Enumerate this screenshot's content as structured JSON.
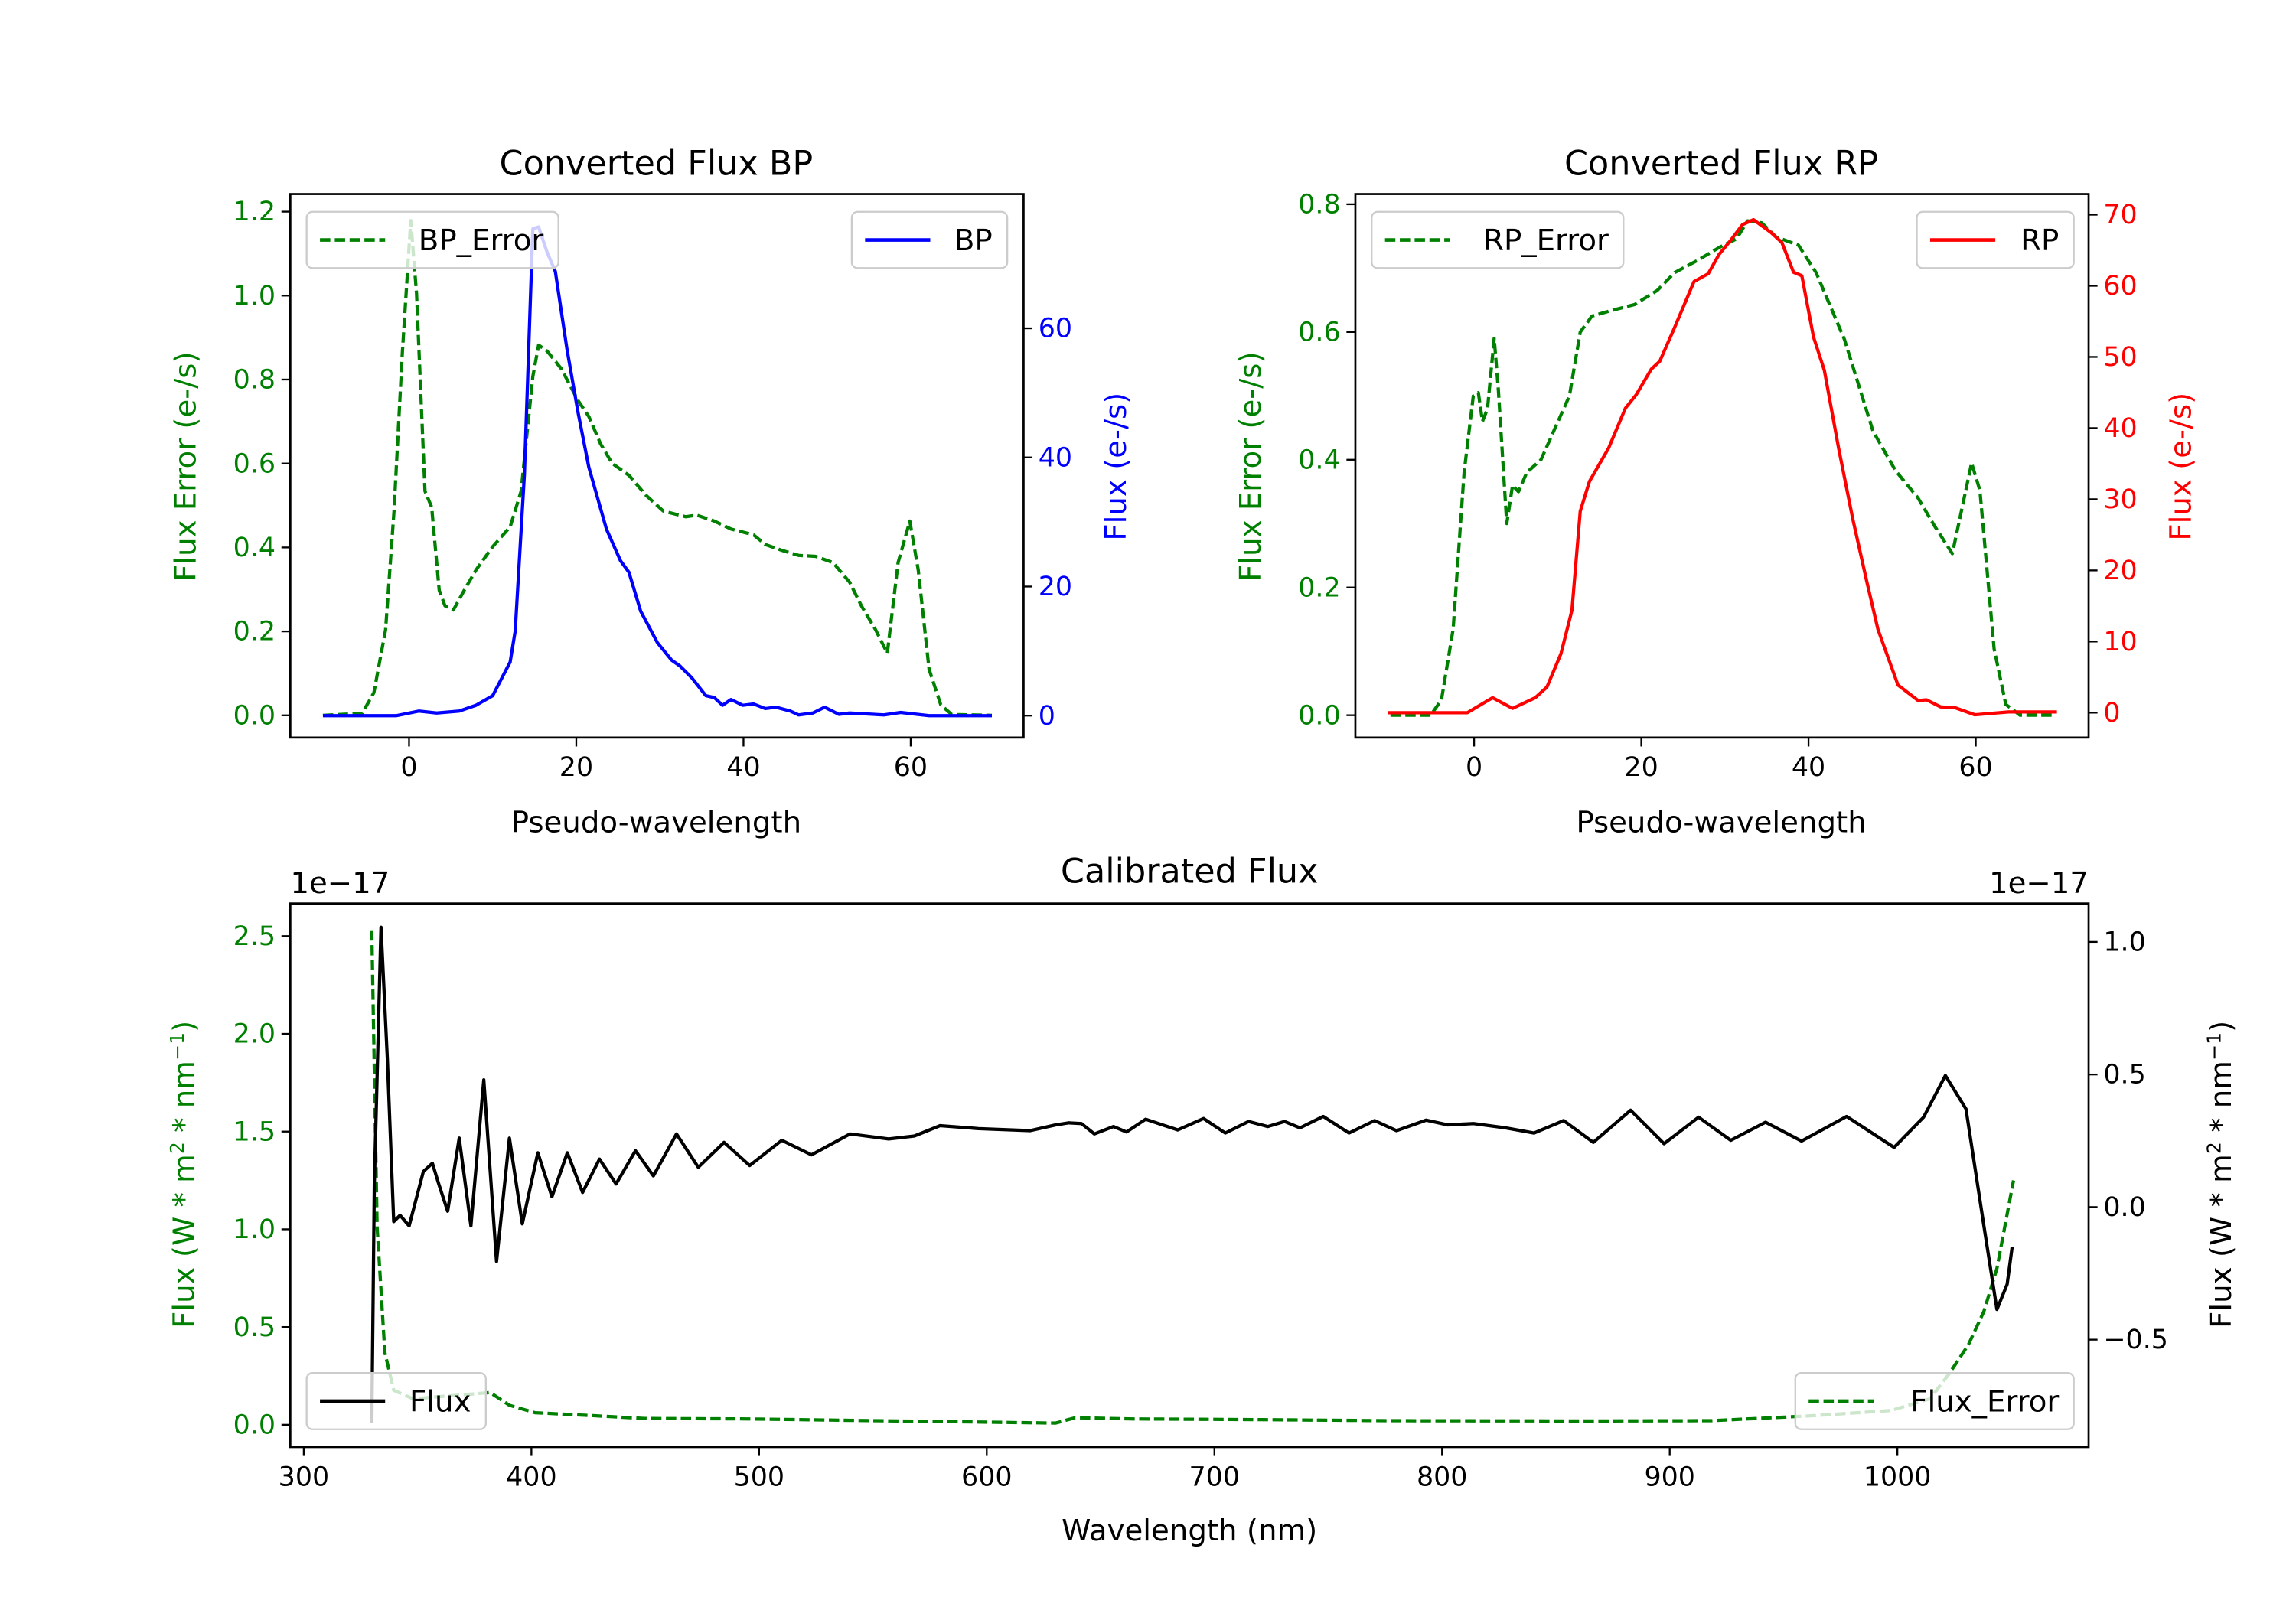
{
  "chart_data": [
    {
      "type": "line",
      "title": "Converted Flux BP",
      "xlabel": "Pseudo-wavelength",
      "ylabel_left": "Flux Error (e-/s)",
      "ylabel_right": "Flux (e-/s)",
      "xlim": [
        -14.2,
        73.5
      ],
      "ylim_left": [
        -0.053,
        1.242
      ],
      "ylim_right": [
        -3.4,
        80.8
      ],
      "xticks": [
        0,
        20,
        40,
        60
      ],
      "yticks_left": [
        "0.0",
        "0.2",
        "0.4",
        "0.6",
        "0.8",
        "1.0",
        "1.2"
      ],
      "yticks_right": [
        "0",
        "20",
        "40",
        "60"
      ],
      "left_color": "#008000",
      "right_color": "#0000ff",
      "legend": [
        {
          "label": "BP_Error",
          "placement": "upper-left"
        },
        {
          "label": "BP",
          "placement": "upper-right"
        }
      ],
      "series": [
        {
          "name": "BP_Error",
          "axis": "left",
          "color": "#008000",
          "style": "dashed",
          "x": [
            -10.3,
            -5.6,
            -4.2,
            -2.8,
            -1.8,
            -0.8,
            0.2,
            0.9,
            1.9,
            2.7,
            3.6,
            4.3,
            5.3,
            6.6,
            8,
            10,
            12.1,
            13.4,
            14.8,
            15.5,
            16.5,
            18.2,
            20.2,
            21.5,
            22.9,
            24.3,
            26.3,
            28.3,
            30.4,
            33.1,
            34.4,
            36.5,
            38.5,
            41.2,
            42.6,
            44.6,
            46.6,
            48.6,
            50.7,
            52.7,
            54.1,
            55.8,
            57.2,
            58.5,
            59.9,
            60.9,
            62.2,
            63.6,
            64.9,
            69.7
          ],
          "y": [
            0,
            0.005,
            0.054,
            0.204,
            0.487,
            0.863,
            1.179,
            1.005,
            0.534,
            0.496,
            0.298,
            0.261,
            0.251,
            0.298,
            0.346,
            0.402,
            0.449,
            0.534,
            0.807,
            0.882,
            0.868,
            0.826,
            0.75,
            0.712,
            0.647,
            0.6,
            0.572,
            0.525,
            0.487,
            0.473,
            0.477,
            0.463,
            0.444,
            0.43,
            0.407,
            0.393,
            0.381,
            0.379,
            0.364,
            0.317,
            0.261,
            0.204,
            0.148,
            0.364,
            0.463,
            0.346,
            0.11,
            0.025,
            0.002,
            0
          ]
        },
        {
          "name": "BP",
          "axis": "right",
          "color": "#0000ff",
          "style": "solid",
          "x": [
            -10.3,
            -1.5,
            1.2,
            3.3,
            6,
            8,
            10,
            12.1,
            12.7,
            13.8,
            14.8,
            15.5,
            16.5,
            17.5,
            18.9,
            20.2,
            21.5,
            23.6,
            25.3,
            26.3,
            27.7,
            29.7,
            31.4,
            32.4,
            33.8,
            35.5,
            36.5,
            37.5,
            38.5,
            39.9,
            41.2,
            42.6,
            43.9,
            45.6,
            46.6,
            48.3,
            49.7,
            51.4,
            52.7,
            56.8,
            58.8,
            62.2,
            69.7
          ],
          "y": [
            0,
            0,
            0.7,
            0.4,
            0.7,
            1.6,
            3.1,
            8.3,
            13.1,
            37.3,
            75.4,
            75.7,
            71.8,
            68.8,
            56.7,
            47,
            38.5,
            28.9,
            24,
            22.2,
            16.2,
            11.3,
            8.6,
            7.7,
            5.9,
            3.1,
            2.8,
            1.6,
            2.5,
            1.6,
            1.8,
            1.1,
            1.3,
            0.7,
            0.1,
            0.4,
            1.3,
            0.2,
            0.4,
            0.1,
            0.5,
            0,
            0
          ]
        }
      ]
    },
    {
      "type": "line",
      "title": "Converted Flux RP",
      "xlabel": "Pseudo-wavelength",
      "ylabel_left": "Flux Error (e-/s)",
      "ylabel_right": "Flux (e-/s)",
      "xlim": [
        -14.2,
        73.5
      ],
      "ylim_left": [
        -0.035,
        0.816
      ],
      "ylim_right": [
        -3.5,
        72.9
      ],
      "xticks": [
        0,
        20,
        40,
        60
      ],
      "yticks_left": [
        "0.0",
        "0.2",
        "0.4",
        "0.6",
        "0.8"
      ],
      "yticks_right": [
        "0",
        "10",
        "20",
        "30",
        "40",
        "50",
        "60",
        "70"
      ],
      "left_color": "#008000",
      "right_color": "#ff0000",
      "legend": [
        {
          "label": "RP_Error",
          "placement": "upper-left"
        },
        {
          "label": "RP",
          "placement": "upper-right"
        }
      ],
      "series": [
        {
          "name": "RP_Error",
          "axis": "left",
          "color": "#008000",
          "style": "dashed",
          "x": [
            -10,
            -5.2,
            -3.9,
            -2.5,
            -1.2,
            -0.1,
            0.5,
            1,
            1.6,
            2.4,
            2.9,
            3.9,
            4.6,
            5.3,
            6.3,
            8,
            9.7,
            11.4,
            12.7,
            14.1,
            16.5,
            19.2,
            21.9,
            24,
            26.7,
            29.4,
            31.4,
            32.7,
            34.4,
            36.1,
            38.8,
            40.9,
            44.3,
            47.7,
            50.4,
            53.1,
            55.1,
            57.2,
            59.5,
            60.5,
            62.2,
            63.6,
            65.3,
            69.4
          ],
          "y": [
            0,
            0,
            0.024,
            0.135,
            0.38,
            0.5,
            0.505,
            0.46,
            0.48,
            0.59,
            0.51,
            0.3,
            0.36,
            0.35,
            0.38,
            0.4,
            0.45,
            0.5,
            0.6,
            0.625,
            0.634,
            0.643,
            0.665,
            0.693,
            0.712,
            0.733,
            0.746,
            0.774,
            0.771,
            0.749,
            0.736,
            0.693,
            0.588,
            0.445,
            0.383,
            0.34,
            0.296,
            0.253,
            0.395,
            0.352,
            0.104,
            0.017,
            0,
            0
          ]
        },
        {
          "name": "RP",
          "axis": "right",
          "color": "#ff0000",
          "style": "solid",
          "x": [
            -10.3,
            -0.8,
            2.2,
            4.6,
            7.3,
            8.7,
            10.4,
            11.7,
            12.7,
            13.8,
            16.1,
            18.1,
            19.4,
            21.2,
            22.2,
            23.9,
            26.3,
            28,
            29.3,
            30.7,
            32.1,
            33.4,
            35.5,
            36.8,
            38.2,
            39.2,
            40.6,
            41.9,
            43.6,
            45.3,
            47,
            48.3,
            50.7,
            53.1,
            54.1,
            55.8,
            57.5,
            59.9,
            63.9,
            69.7
          ],
          "y": [
            0,
            0,
            2.1,
            0.6,
            2.1,
            3.6,
            8.3,
            14.4,
            28.3,
            32.5,
            37.2,
            42.8,
            44.7,
            48.3,
            49.4,
            53.9,
            60.6,
            61.7,
            64.4,
            66.4,
            68.6,
            69.3,
            67.5,
            66.1,
            61.9,
            61.4,
            52.8,
            48.1,
            37.2,
            27.2,
            18.3,
            11.7,
            3.9,
            1.7,
            1.8,
            0.8,
            0.7,
            -0.3,
            0.1,
            0.1
          ]
        }
      ]
    },
    {
      "type": "line",
      "title": "Calibrated Flux",
      "xlabel": "Wavelength (nm)",
      "ylabel_left": "Flux (W * m$^2$ * nm$^{-1}$)",
      "ylabel_right": "Flux (W * m$^2$ * nm$^{-1}$)",
      "offset_left": "1e−17",
      "offset_right": "1e−17",
      "xlim": [
        294.1,
        1084
      ],
      "ylim_left": [
        -0.114,
        2.667
      ],
      "ylim_right": [
        -0.905,
        1.145
      ],
      "xticks": [
        300,
        400,
        500,
        600,
        700,
        800,
        900,
        1000
      ],
      "yticks_left": [
        "0.0",
        "0.5",
        "1.0",
        "1.5",
        "2.0",
        "2.5"
      ],
      "yticks_right": [
        "−0.5",
        "0.0",
        "0.5",
        "1.0"
      ],
      "left_color": "#008000",
      "right_color": "#000000",
      "legend": [
        {
          "label": "Flux",
          "placement": "lower-left"
        },
        {
          "label": "Flux_Error",
          "placement": "lower-right"
        }
      ],
      "series": [
        {
          "name": "Flux_Error",
          "axis": "left",
          "color": "#008000",
          "style": "dashed",
          "x": [
            329.9,
            332.2,
            335.6,
            339.5,
            348,
            381.9,
            390.3,
            401.6,
            427,
            449.6,
            494.8,
            551.3,
            630.3,
            638.8,
            664.2,
            720.7,
            777.1,
            861.8,
            918.3,
            963.5,
            997.3,
            1014.3,
            1022.7,
            1031.2,
            1038,
            1043.7,
            1051
          ],
          "y": [
            2.53,
            1.01,
            0.37,
            0.176,
            0.133,
            0.165,
            0.1,
            0.062,
            0.047,
            0.032,
            0.03,
            0.021,
            0.009,
            0.036,
            0.03,
            0.026,
            0.021,
            0.019,
            0.021,
            0.047,
            0.073,
            0.133,
            0.26,
            0.41,
            0.58,
            0.8,
            1.25
          ]
        },
        {
          "name": "Flux",
          "axis": "right",
          "color": "#000000",
          "style": "solid",
          "x": [
            329.9,
            331,
            333.9,
            336.7,
            339.5,
            342.3,
            346.3,
            352.5,
            356.5,
            359.3,
            363.2,
            368.3,
            373.4,
            379.1,
            384.7,
            390.3,
            396,
            402.8,
            409,
            415.8,
            422.5,
            429.9,
            437.2,
            445.7,
            453.6,
            463.7,
            473.3,
            484.6,
            495.9,
            510,
            523,
            540,
            556.9,
            568.2,
            579.5,
            596.4,
            619,
            630.3,
            636,
            641.6,
            647.3,
            655.7,
            661.4,
            669.8,
            683.9,
            695.2,
            704.8,
            715,
            723.5,
            730.8,
            737.6,
            747.8,
            759.1,
            770.4,
            780,
            793,
            802.5,
            813.8,
            827.9,
            840.4,
            853.4,
            866.4,
            882.8,
            897.5,
            912.7,
            926.8,
            942.1,
            957.9,
            977.7,
            998.6,
            1011.5,
            1021.1,
            1030.1,
            1038,
            1043.7,
            1048.2,
            1050.4
          ],
          "y": [
            -0.814,
            0.087,
            1.055,
            0.559,
            -0.055,
            -0.031,
            -0.071,
            0.134,
            0.165,
            0.087,
            -0.016,
            0.26,
            -0.071,
            0.48,
            -0.205,
            0.26,
            -0.063,
            0.205,
            0.039,
            0.205,
            0.055,
            0.181,
            0.087,
            0.213,
            0.118,
            0.276,
            0.15,
            0.244,
            0.157,
            0.252,
            0.197,
            0.276,
            0.257,
            0.268,
            0.307,
            0.296,
            0.288,
            0.31,
            0.318,
            0.315,
            0.276,
            0.304,
            0.283,
            0.331,
            0.291,
            0.334,
            0.279,
            0.323,
            0.304,
            0.323,
            0.299,
            0.342,
            0.279,
            0.326,
            0.288,
            0.328,
            0.31,
            0.315,
            0.299,
            0.279,
            0.326,
            0.244,
            0.365,
            0.239,
            0.339,
            0.252,
            0.32,
            0.249,
            0.342,
            0.225,
            0.339,
            0.496,
            0.37,
            -0.071,
            -0.386,
            -0.291,
            -0.15
          ]
        }
      ]
    }
  ]
}
